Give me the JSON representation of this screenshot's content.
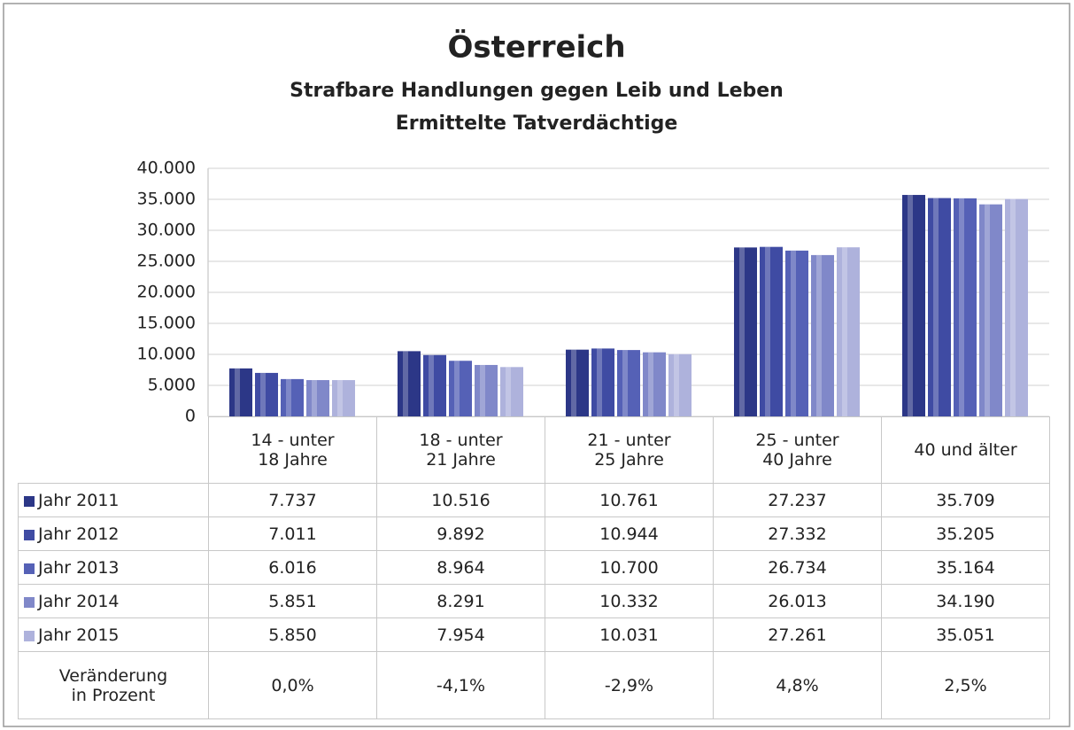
{
  "chart_data": {
    "type": "bar",
    "title": "Österreich",
    "subtitle": "Strafbare Handlungen gegen Leib und Leben",
    "subtitle2": "Ermittelte Tatverdächtige",
    "categories": [
      "14 - unter\n18 Jahre",
      "18 - unter\n21 Jahre",
      "21 - unter\n25 Jahre",
      "25 - unter\n40 Jahre",
      "40 und älter"
    ],
    "series": [
      {
        "name": "Jahr 2011",
        "color": "#2c3787",
        "values": [
          7737,
          10516,
          10761,
          27237,
          35709
        ],
        "value_labels": [
          "7.737",
          "10.516",
          "10.761",
          "27.237",
          "35.709"
        ]
      },
      {
        "name": "Jahr 2012",
        "color": "#3f4ba3",
        "values": [
          7011,
          9892,
          10944,
          27332,
          35205
        ],
        "value_labels": [
          "7.011",
          "9.892",
          "10.944",
          "27.332",
          "35.205"
        ]
      },
      {
        "name": "Jahr 2013",
        "color": "#5561b6",
        "values": [
          6016,
          8964,
          10700,
          26734,
          35164
        ],
        "value_labels": [
          "6.016",
          "8.964",
          "10.700",
          "26.734",
          "35.164"
        ]
      },
      {
        "name": "Jahr 2014",
        "color": "#8088c9",
        "values": [
          5851,
          8291,
          10332,
          26013,
          34190
        ],
        "value_labels": [
          "5.851",
          "8.291",
          "10.332",
          "26.013",
          "34.190"
        ]
      },
      {
        "name": "Jahr 2015",
        "color": "#aeb2dc",
        "values": [
          5850,
          7954,
          10031,
          27261,
          35051
        ],
        "value_labels": [
          "5.850",
          "7.954",
          "10.031",
          "27.261",
          "35.051"
        ]
      }
    ],
    "change": {
      "name": "Veränderung\nin Prozent",
      "values": [
        0.0,
        -4.1,
        -2.9,
        4.8,
        2.5
      ],
      "value_labels": [
        "0,0%",
        "-4,1%",
        "-2,9%",
        "4,8%",
        "2,5%"
      ]
    },
    "ylim": [
      0,
      40000
    ],
    "yticks": [
      0,
      {
        "value": 5000,
        "label": "5.000"
      },
      {
        "value": 10000,
        "label": "10.000"
      },
      {
        "value": 15000,
        "label": "15.000"
      },
      {
        "value": 20000,
        "label": "20.000"
      },
      {
        "value": 25000,
        "label": "25.000"
      },
      {
        "value": 30000,
        "label": "30.000"
      },
      {
        "value": 35000,
        "label": "35.000"
      },
      {
        "value": 40000,
        "label": "40.000"
      }
    ],
    "grid": true
  }
}
